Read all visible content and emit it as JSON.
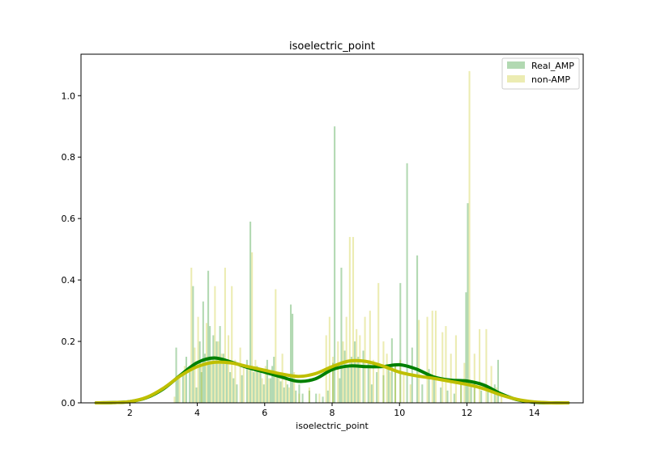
{
  "chart_data": {
    "type": "histogram_kde",
    "title": "isoelectric_point",
    "xlabel": "isoelectric_point",
    "ylabel": "",
    "xlim": [
      0.55,
      15.45
    ],
    "ylim": [
      0,
      1.135
    ],
    "xticks": [
      2,
      4,
      6,
      8,
      10,
      12,
      14
    ],
    "yticks": [
      0.0,
      0.2,
      0.4,
      0.6,
      0.8,
      1.0
    ],
    "xtick_labels": [
      "2",
      "4",
      "6",
      "8",
      "10",
      "12",
      "14"
    ],
    "ytick_labels": [
      "0.0",
      "0.2",
      "0.4",
      "0.6",
      "0.8",
      "1.0"
    ],
    "legend_position": "top-right",
    "grid": false,
    "series": [
      {
        "name": "Real_AMP",
        "color": "#008000",
        "bar_alpha": 0.3,
        "bar_width": 0.05,
        "bars": [
          [
            3.35,
            0.18
          ],
          [
            3.4,
            0.08
          ],
          [
            3.55,
            0.1
          ],
          [
            3.65,
            0.15
          ],
          [
            3.75,
            0.12
          ],
          [
            3.85,
            0.38
          ],
          [
            3.95,
            0.05
          ],
          [
            4.05,
            0.2
          ],
          [
            4.1,
            0.1
          ],
          [
            4.15,
            0.33
          ],
          [
            4.2,
            0.16
          ],
          [
            4.3,
            0.43
          ],
          [
            4.35,
            0.25
          ],
          [
            4.45,
            0.22
          ],
          [
            4.55,
            0.2
          ],
          [
            4.65,
            0.25
          ],
          [
            4.75,
            0.16
          ],
          [
            4.85,
            0.14
          ],
          [
            4.95,
            0.1
          ],
          [
            5.05,
            0.08
          ],
          [
            5.15,
            0.06
          ],
          [
            5.3,
            0.09
          ],
          [
            5.45,
            0.14
          ],
          [
            5.55,
            0.59
          ],
          [
            5.65,
            0.1
          ],
          [
            5.75,
            0.12
          ],
          [
            5.85,
            0.1
          ],
          [
            5.95,
            0.06
          ],
          [
            6.05,
            0.14
          ],
          [
            6.15,
            0.08
          ],
          [
            6.2,
            0.12
          ],
          [
            6.25,
            0.15
          ],
          [
            6.35,
            0.1
          ],
          [
            6.45,
            0.07
          ],
          [
            6.55,
            0.05
          ],
          [
            6.65,
            0.06
          ],
          [
            6.75,
            0.32
          ],
          [
            6.8,
            0.29
          ],
          [
            6.9,
            0.04
          ],
          [
            7.0,
            0.06
          ],
          [
            7.1,
            0.03
          ],
          [
            7.3,
            0.04
          ],
          [
            7.5,
            0.03
          ],
          [
            7.7,
            0.02
          ],
          [
            7.85,
            0.04
          ],
          [
            8.0,
            0.13
          ],
          [
            8.05,
            0.9
          ],
          [
            8.2,
            0.08
          ],
          [
            8.25,
            0.44
          ],
          [
            8.35,
            0.17
          ],
          [
            8.45,
            0.12
          ],
          [
            8.55,
            0.15
          ],
          [
            8.65,
            0.2
          ],
          [
            8.75,
            0.15
          ],
          [
            8.9,
            0.17
          ],
          [
            9.05,
            0.13
          ],
          [
            9.15,
            0.06
          ],
          [
            9.3,
            0.1
          ],
          [
            9.5,
            0.09
          ],
          [
            9.65,
            0.12
          ],
          [
            9.75,
            0.21
          ],
          [
            9.85,
            0.12
          ],
          [
            10.0,
            0.39
          ],
          [
            10.2,
            0.78
          ],
          [
            10.35,
            0.18
          ],
          [
            10.5,
            0.48
          ],
          [
            10.65,
            0.06
          ],
          [
            10.85,
            0.11
          ],
          [
            11.0,
            0.08
          ],
          [
            11.2,
            0.05
          ],
          [
            11.4,
            0.04
          ],
          [
            11.6,
            0.03
          ],
          [
            11.8,
            0.06
          ],
          [
            11.95,
            0.36
          ],
          [
            12.0,
            0.65
          ],
          [
            12.1,
            0.06
          ],
          [
            12.2,
            0.07
          ],
          [
            12.4,
            0.04
          ],
          [
            12.6,
            0.05
          ],
          [
            12.8,
            0.06
          ],
          [
            12.9,
            0.14
          ]
        ],
        "kde": [
          [
            1.0,
            0.0
          ],
          [
            1.5,
            0.001
          ],
          [
            2.0,
            0.004
          ],
          [
            2.5,
            0.017
          ],
          [
            3.0,
            0.046
          ],
          [
            3.5,
            0.09
          ],
          [
            4.0,
            0.131
          ],
          [
            4.5,
            0.146
          ],
          [
            5.0,
            0.133
          ],
          [
            5.5,
            0.115
          ],
          [
            6.0,
            0.1
          ],
          [
            6.5,
            0.084
          ],
          [
            7.0,
            0.07
          ],
          [
            7.5,
            0.078
          ],
          [
            8.0,
            0.108
          ],
          [
            8.5,
            0.12
          ],
          [
            9.0,
            0.118
          ],
          [
            9.5,
            0.118
          ],
          [
            10.0,
            0.124
          ],
          [
            10.5,
            0.11
          ],
          [
            11.0,
            0.085
          ],
          [
            11.5,
            0.074
          ],
          [
            12.0,
            0.071
          ],
          [
            12.5,
            0.058
          ],
          [
            13.0,
            0.03
          ],
          [
            13.5,
            0.01
          ],
          [
            14.0,
            0.002
          ],
          [
            14.5,
            0.0
          ],
          [
            15.0,
            0.0
          ]
        ]
      },
      {
        "name": "non-AMP",
        "color": "#bfbf00",
        "bar_alpha": 0.3,
        "bar_width": 0.05,
        "bars": [
          [
            3.3,
            0.02
          ],
          [
            3.45,
            0.08
          ],
          [
            3.6,
            0.12
          ],
          [
            3.8,
            0.44
          ],
          [
            3.9,
            0.18
          ],
          [
            4.0,
            0.28
          ],
          [
            4.1,
            0.12
          ],
          [
            4.25,
            0.26
          ],
          [
            4.4,
            0.14
          ],
          [
            4.5,
            0.38
          ],
          [
            4.6,
            0.2
          ],
          [
            4.7,
            0.16
          ],
          [
            4.8,
            0.44
          ],
          [
            4.9,
            0.22
          ],
          [
            5.0,
            0.38
          ],
          [
            5.1,
            0.14
          ],
          [
            5.25,
            0.18
          ],
          [
            5.35,
            0.12
          ],
          [
            5.5,
            0.12
          ],
          [
            5.6,
            0.49
          ],
          [
            5.7,
            0.14
          ],
          [
            5.8,
            0.1
          ],
          [
            5.9,
            0.08
          ],
          [
            6.0,
            0.12
          ],
          [
            6.1,
            0.08
          ],
          [
            6.3,
            0.37
          ],
          [
            6.4,
            0.1
          ],
          [
            6.5,
            0.16
          ],
          [
            6.6,
            0.08
          ],
          [
            6.7,
            0.05
          ],
          [
            6.85,
            0.1
          ],
          [
            7.0,
            0.03
          ],
          [
            7.3,
            0.05
          ],
          [
            7.6,
            0.03
          ],
          [
            7.8,
            0.22
          ],
          [
            7.9,
            0.28
          ],
          [
            8.0,
            0.15
          ],
          [
            8.15,
            0.2
          ],
          [
            8.3,
            0.2
          ],
          [
            8.4,
            0.28
          ],
          [
            8.5,
            0.54
          ],
          [
            8.6,
            0.54
          ],
          [
            8.7,
            0.24
          ],
          [
            8.8,
            0.22
          ],
          [
            8.95,
            0.28
          ],
          [
            9.1,
            0.3
          ],
          [
            9.2,
            0.14
          ],
          [
            9.35,
            0.39
          ],
          [
            9.5,
            0.2
          ],
          [
            9.6,
            0.16
          ],
          [
            9.7,
            0.1
          ],
          [
            9.85,
            0.12
          ],
          [
            10.0,
            0.14
          ],
          [
            10.1,
            0.1
          ],
          [
            10.3,
            0.06
          ],
          [
            10.55,
            0.27
          ],
          [
            10.8,
            0.28
          ],
          [
            10.95,
            0.3
          ],
          [
            11.05,
            0.3
          ],
          [
            11.25,
            0.23
          ],
          [
            11.35,
            0.25
          ],
          [
            11.5,
            0.16
          ],
          [
            11.65,
            0.22
          ],
          [
            11.8,
            0.07
          ],
          [
            11.9,
            0.13
          ],
          [
            12.05,
            1.08
          ],
          [
            12.2,
            0.16
          ],
          [
            12.35,
            0.24
          ],
          [
            12.55,
            0.24
          ],
          [
            12.7,
            0.12
          ],
          [
            12.85,
            0.05
          ],
          [
            13.0,
            0.03
          ]
        ],
        "kde": [
          [
            1.0,
            0.0
          ],
          [
            1.5,
            0.001
          ],
          [
            2.0,
            0.004
          ],
          [
            2.5,
            0.018
          ],
          [
            3.0,
            0.048
          ],
          [
            3.5,
            0.088
          ],
          [
            4.0,
            0.118
          ],
          [
            4.5,
            0.132
          ],
          [
            5.0,
            0.13
          ],
          [
            5.5,
            0.118
          ],
          [
            6.0,
            0.106
          ],
          [
            6.5,
            0.094
          ],
          [
            7.0,
            0.086
          ],
          [
            7.5,
            0.095
          ],
          [
            8.0,
            0.118
          ],
          [
            8.5,
            0.136
          ],
          [
            9.0,
            0.135
          ],
          [
            9.5,
            0.12
          ],
          [
            10.0,
            0.1
          ],
          [
            10.5,
            0.088
          ],
          [
            11.0,
            0.08
          ],
          [
            11.5,
            0.07
          ],
          [
            12.0,
            0.06
          ],
          [
            12.5,
            0.046
          ],
          [
            13.0,
            0.026
          ],
          [
            13.5,
            0.011
          ],
          [
            14.0,
            0.003
          ],
          [
            14.5,
            0.0
          ],
          [
            15.0,
            0.0
          ]
        ]
      }
    ]
  }
}
